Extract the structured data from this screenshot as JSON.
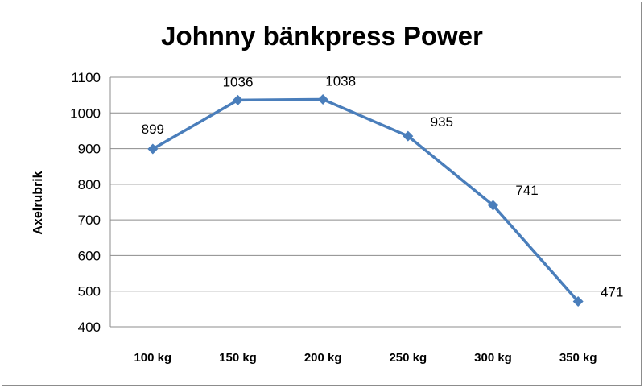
{
  "chart_data": {
    "type": "line",
    "title": "Johnny bänkpress Power",
    "xlabel": "",
    "ylabel": "Axelrubrik",
    "categories": [
      "100 kg",
      "150 kg",
      "200 kg",
      "250 kg",
      "300 kg",
      "350 kg"
    ],
    "series": [
      {
        "values": [
          899,
          1036,
          1038,
          935,
          741,
          471
        ],
        "color": "#4a7ebb",
        "marker": "diamond"
      }
    ],
    "data_labels": [
      "899",
      "1036",
      "1038",
      "935",
      "741",
      "471"
    ],
    "ylim": [
      400,
      1100
    ],
    "yticks": [
      "400",
      "500",
      "600",
      "700",
      "800",
      "900",
      "1000",
      "1100"
    ],
    "grid": true,
    "legend": "none",
    "colors": {
      "gridline": "#8c8c8c",
      "axis": "#8c8c8c",
      "frame": "#8c8c8c"
    }
  }
}
